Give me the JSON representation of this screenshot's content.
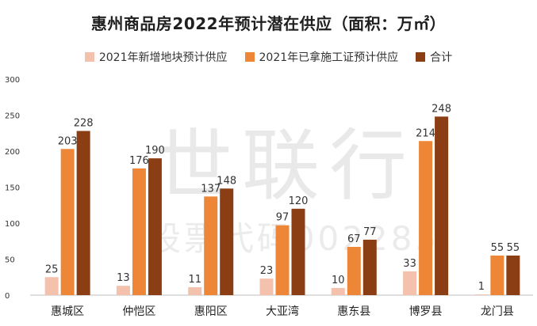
{
  "chart_data": {
    "type": "bar",
    "title": "惠州商品房2022年预计潜在供应（面积：万㎡）",
    "categories": [
      "惠城区",
      "仲恺区",
      "惠阳区",
      "大亚湾",
      "惠东县",
      "博罗县",
      "龙门县"
    ],
    "series": [
      {
        "name": "2021年新增地块预计供应",
        "color": "#f4c1ad",
        "values": [
          25,
          13,
          11,
          23,
          10,
          33,
          1
        ]
      },
      {
        "name": "2021年已拿施工证预计供应",
        "color": "#ee8637",
        "values": [
          203,
          176,
          137,
          97,
          67,
          214,
          55
        ]
      },
      {
        "name": "合计",
        "color": "#8b3e14",
        "values": [
          228,
          190,
          148,
          120,
          77,
          248,
          55
        ]
      }
    ],
    "yticks": [
      0,
      50,
      100,
      150,
      200,
      250,
      300
    ],
    "ylim": [
      0,
      300
    ],
    "grid": false,
    "legend_position": "top-center"
  },
  "watermark": {
    "main": "世联行",
    "sub": "股票代码002285"
  }
}
